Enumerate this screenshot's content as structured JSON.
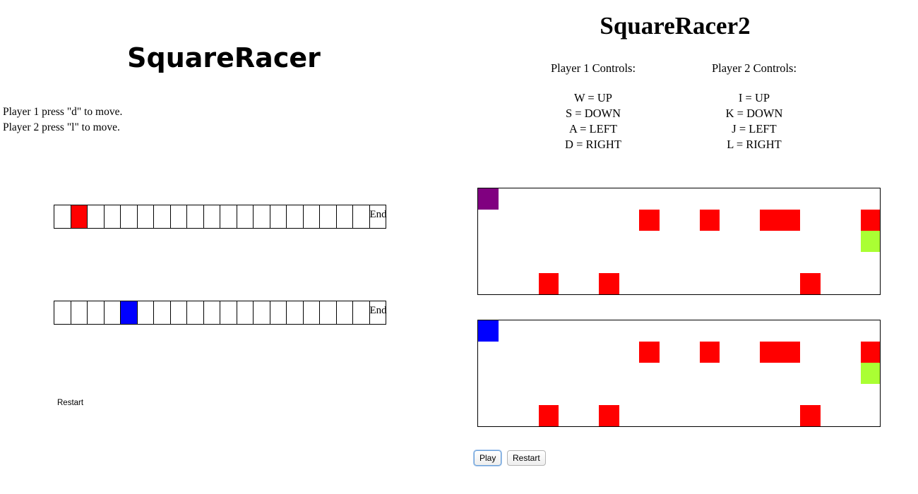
{
  "left_game": {
    "title": "SquareRacer",
    "instructions": [
      "Player 1 press \"d\" to move.",
      "Player 2 press \"l\" to move."
    ],
    "cell_count": 20,
    "end_label": "End",
    "tracks": [
      {
        "player": 1,
        "position_index": 1,
        "color": "#ff0000"
      },
      {
        "player": 2,
        "position_index": 4,
        "color": "#0000ff"
      }
    ],
    "restart_label": "Restart"
  },
  "right_game": {
    "title": "SquareRacer2",
    "controls": [
      {
        "heading": "Player 1 Controls:",
        "lines": [
          "W = UP",
          "S = DOWN",
          "A = LEFT",
          "D = RIGHT"
        ]
      },
      {
        "heading": "Player 2 Controls:",
        "lines": [
          "I = UP",
          "K = DOWN",
          "J = LEFT",
          "L = RIGHT"
        ]
      }
    ],
    "grid": {
      "columns": 20,
      "rows": 5
    },
    "boards": [
      {
        "player": 1,
        "player_color": "#800080",
        "player_cell": [
          0,
          0
        ],
        "goal_cell": [
          19,
          2
        ]
      },
      {
        "player": 2,
        "player_color": "#0000ff",
        "player_cell": [
          0,
          0
        ],
        "goal_cell": [
          19,
          2
        ]
      }
    ],
    "obstacle_color": "#ff0000",
    "goal_color": "#aaff33",
    "obstacles": [
      [
        8,
        1
      ],
      [
        11,
        1
      ],
      [
        14,
        1
      ],
      [
        15,
        1
      ],
      [
        19,
        1
      ],
      [
        3,
        4
      ],
      [
        6,
        4
      ],
      [
        16,
        4
      ]
    ],
    "buttons": {
      "play": "Play",
      "restart": "Restart"
    }
  }
}
